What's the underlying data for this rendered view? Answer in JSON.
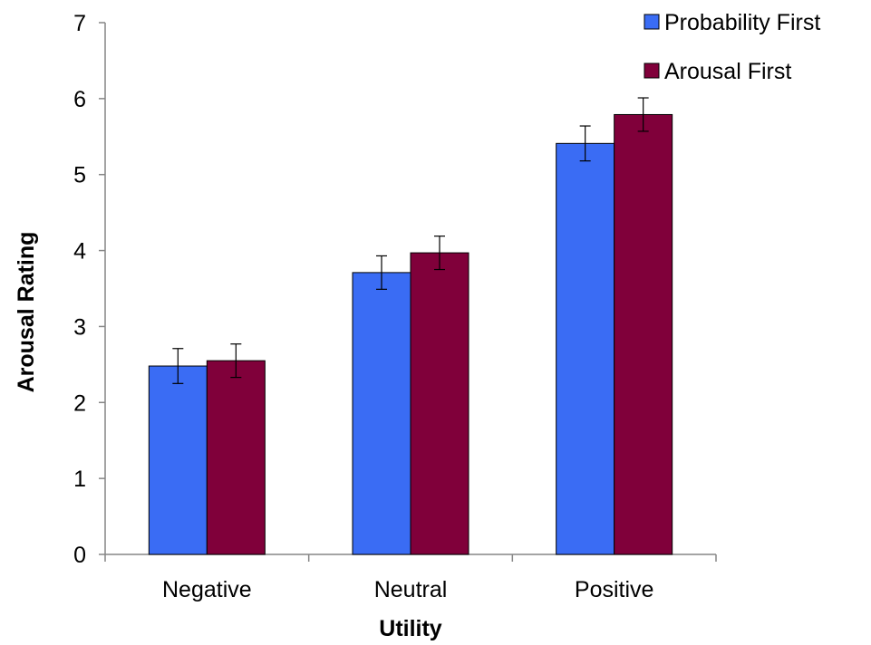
{
  "chart_data": {
    "type": "bar",
    "title": "",
    "xlabel": "Utility",
    "ylabel": "Arousal Rating",
    "categories": [
      "Negative",
      "Neutral",
      "Positive"
    ],
    "ylim": [
      0,
      7
    ],
    "yticks": [
      "0",
      "1",
      "2",
      "3",
      "4",
      "5",
      "6",
      "7"
    ],
    "grid": false,
    "legend_position": "top-right",
    "series": [
      {
        "name": "Probability First",
        "color": "#3a6cf4",
        "values": [
          2.48,
          3.71,
          5.41
        ],
        "error": [
          0.23,
          0.22,
          0.23
        ]
      },
      {
        "name": "Arousal First",
        "color": "#80003a",
        "values": [
          2.55,
          3.97,
          5.79
        ],
        "error": [
          0.22,
          0.22,
          0.22
        ]
      }
    ]
  }
}
